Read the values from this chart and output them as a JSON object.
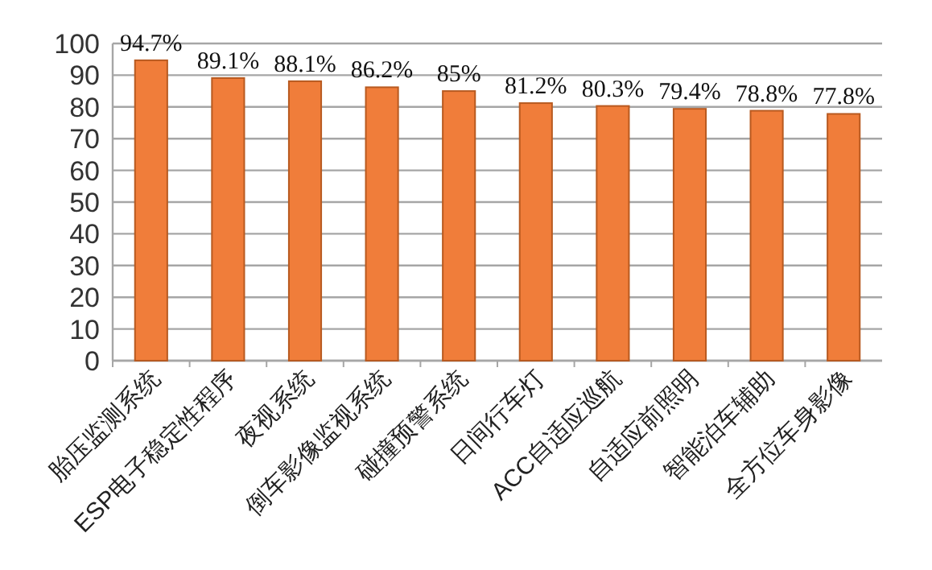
{
  "chart_data": {
    "type": "bar",
    "categories": [
      "胎压监测系统",
      "ESP电子稳定性程序",
      "夜视系统",
      "倒车影像监视系统",
      "碰撞预警系统",
      "日间行车灯",
      "ACC自适应巡航",
      "自适应前照明",
      "智能泊车辅助",
      "全方位车身影像"
    ],
    "series": [
      {
        "color": "#f07d3a",
        "values": [
          94.7,
          89.1,
          88.1,
          86.2,
          85,
          81.2,
          80.3,
          79.4,
          78.8,
          77.8
        ],
        "value_labels": [
          "94.7%",
          "89.1%",
          "88.1%",
          "86.2%",
          "85%",
          "81.2%",
          "80.3%",
          "79.4%",
          "78.8%",
          "77.8%"
        ]
      }
    ],
    "ylim": [
      0,
      100
    ],
    "yticks": [
      0,
      10,
      20,
      30,
      40,
      50,
      60,
      70,
      80,
      90,
      100
    ],
    "grid": "y"
  }
}
